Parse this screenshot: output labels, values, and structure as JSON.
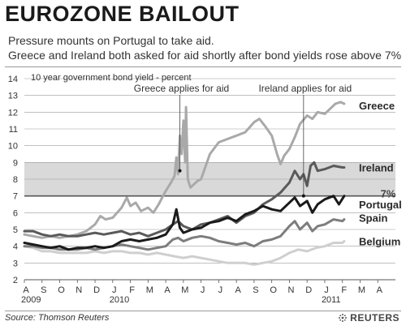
{
  "header": {
    "title": "EUROZONE BAILOUT",
    "subtitle_1": "Pressure mounts on Portugal to take aid.",
    "subtitle_2": "Greece and Ireland both asked for aid shortly after bond yields rose above 7%"
  },
  "footer": {
    "source": "Source: Thomson Reuters",
    "brand": "REUTERS"
  },
  "colors": {
    "highlight_band": "#d9d9d9",
    "threshold_line": "#555555",
    "greece": "#a9a9a9",
    "ireland": "#5a5a5a",
    "portugal": "#1a1a1a",
    "spain": "#7d7d7d",
    "belgium": "#cfcfcf"
  },
  "chart_data": {
    "type": "line",
    "ylabel": "10 year government bond yield - percent",
    "ylim": [
      2,
      14
    ],
    "yticks": [
      2,
      3,
      4,
      5,
      6,
      7,
      8,
      9,
      10,
      11,
      12,
      13,
      14
    ],
    "grid": true,
    "shaded_band": [
      7,
      9
    ],
    "threshold": {
      "value": 7,
      "label": "7%"
    },
    "x_month_labels": [
      "A",
      "S",
      "O",
      "N",
      "D",
      "J",
      "F",
      "M",
      "A",
      "M",
      "J",
      "J",
      "A",
      "S",
      "O",
      "N",
      "D",
      "J",
      "F",
      "M",
      "A"
    ],
    "x_year_labels": [
      {
        "label": "2009",
        "month_index": 0
      },
      {
        "label": "2010",
        "month_index": 5
      },
      {
        "label": "2011",
        "month_index": 17
      }
    ],
    "x_range_months": [
      0,
      21
    ],
    "annotations": [
      {
        "text": "Greece applies for aid",
        "x": 8.8,
        "y": 8.5
      },
      {
        "text": "Ireland applies for aid",
        "x": 15.8,
        "y": 7.0
      }
    ],
    "series": [
      {
        "name": "Greece",
        "label_y": 12.4,
        "points": [
          [
            0,
            4.7
          ],
          [
            0.5,
            4.6
          ],
          [
            1,
            4.5
          ],
          [
            1.5,
            4.6
          ],
          [
            2,
            4.5
          ],
          [
            2.5,
            4.6
          ],
          [
            3,
            4.7
          ],
          [
            3.5,
            4.9
          ],
          [
            4,
            5.3
          ],
          [
            4.3,
            5.8
          ],
          [
            4.6,
            5.6
          ],
          [
            5,
            5.7
          ],
          [
            5.5,
            6.3
          ],
          [
            5.8,
            6.9
          ],
          [
            6,
            6.4
          ],
          [
            6.3,
            6.6
          ],
          [
            6.6,
            6.1
          ],
          [
            7,
            6.3
          ],
          [
            7.3,
            6.0
          ],
          [
            7.6,
            6.5
          ],
          [
            8,
            7.3
          ],
          [
            8.3,
            7.8
          ],
          [
            8.5,
            8.2
          ],
          [
            8.6,
            9.3
          ],
          [
            8.7,
            8.3
          ],
          [
            8.8,
            10.6
          ],
          [
            8.9,
            9.5
          ],
          [
            9.0,
            11.5
          ],
          [
            9.1,
            9.0
          ],
          [
            9.15,
            12.3
          ],
          [
            9.25,
            8.0
          ],
          [
            9.4,
            7.5
          ],
          [
            9.6,
            7.7
          ],
          [
            9.8,
            7.9
          ],
          [
            10,
            8.0
          ],
          [
            10.5,
            9.5
          ],
          [
            11,
            10.2
          ],
          [
            11.5,
            10.4
          ],
          [
            12,
            10.6
          ],
          [
            12.5,
            10.8
          ],
          [
            13,
            11.4
          ],
          [
            13.3,
            11.6
          ],
          [
            13.6,
            11.2
          ],
          [
            14,
            10.6
          ],
          [
            14.3,
            9.5
          ],
          [
            14.5,
            8.9
          ],
          [
            14.7,
            9.4
          ],
          [
            15,
            9.8
          ],
          [
            15.3,
            10.5
          ],
          [
            15.6,
            11.3
          ],
          [
            16,
            11.8
          ],
          [
            16.3,
            11.6
          ],
          [
            16.6,
            12.0
          ],
          [
            17,
            11.9
          ],
          [
            17.3,
            12.2
          ],
          [
            17.6,
            12.5
          ],
          [
            17.9,
            12.6
          ],
          [
            18.1,
            12.5
          ]
        ]
      },
      {
        "name": "Ireland",
        "label_y": 8.7,
        "points": [
          [
            0,
            4.9
          ],
          [
            0.5,
            4.9
          ],
          [
            1,
            4.7
          ],
          [
            1.5,
            4.6
          ],
          [
            2,
            4.7
          ],
          [
            2.5,
            4.6
          ],
          [
            3,
            4.6
          ],
          [
            3.5,
            4.7
          ],
          [
            4,
            4.8
          ],
          [
            4.5,
            4.7
          ],
          [
            5,
            4.8
          ],
          [
            5.5,
            4.9
          ],
          [
            6,
            4.7
          ],
          [
            6.5,
            4.8
          ],
          [
            7,
            4.6
          ],
          [
            7.5,
            4.8
          ],
          [
            8,
            5.0
          ],
          [
            8.4,
            5.3
          ],
          [
            8.7,
            5.5
          ],
          [
            9,
            5.2
          ],
          [
            9.5,
            5.0
          ],
          [
            10,
            5.3
          ],
          [
            10.5,
            5.4
          ],
          [
            11,
            5.6
          ],
          [
            11.5,
            5.8
          ],
          [
            12,
            5.4
          ],
          [
            12.5,
            5.8
          ],
          [
            13,
            6.0
          ],
          [
            13.5,
            6.5
          ],
          [
            14,
            6.8
          ],
          [
            14.5,
            7.2
          ],
          [
            15,
            7.8
          ],
          [
            15.3,
            8.5
          ],
          [
            15.6,
            8.0
          ],
          [
            15.8,
            8.3
          ],
          [
            16,
            7.6
          ],
          [
            16.2,
            8.8
          ],
          [
            16.4,
            9.0
          ],
          [
            16.6,
            8.5
          ],
          [
            17,
            8.6
          ],
          [
            17.5,
            8.8
          ],
          [
            18,
            8.7
          ],
          [
            18.1,
            8.7
          ]
        ]
      },
      {
        "name": "Portugal",
        "label_y": 6.5,
        "points": [
          [
            0,
            4.2
          ],
          [
            0.5,
            4.1
          ],
          [
            1,
            4.0
          ],
          [
            1.5,
            3.9
          ],
          [
            2,
            4.0
          ],
          [
            2.5,
            3.8
          ],
          [
            3,
            3.9
          ],
          [
            3.5,
            3.9
          ],
          [
            4,
            4.0
          ],
          [
            4.5,
            3.9
          ],
          [
            5,
            4.0
          ],
          [
            5.5,
            4.3
          ],
          [
            6,
            4.4
          ],
          [
            6.5,
            4.3
          ],
          [
            7,
            4.4
          ],
          [
            7.5,
            4.5
          ],
          [
            8,
            4.7
          ],
          [
            8.4,
            5.3
          ],
          [
            8.6,
            6.2
          ],
          [
            8.8,
            5.1
          ],
          [
            9,
            4.8
          ],
          [
            9.5,
            5.0
          ],
          [
            10,
            5.1
          ],
          [
            10.5,
            5.4
          ],
          [
            11,
            5.5
          ],
          [
            11.5,
            5.7
          ],
          [
            12,
            5.5
          ],
          [
            12.5,
            5.9
          ],
          [
            13,
            6.1
          ],
          [
            13.5,
            6.4
          ],
          [
            14,
            6.2
          ],
          [
            14.5,
            6.1
          ],
          [
            15,
            6.6
          ],
          [
            15.3,
            6.9
          ],
          [
            15.6,
            6.4
          ],
          [
            16,
            6.7
          ],
          [
            16.3,
            6.0
          ],
          [
            16.6,
            6.5
          ],
          [
            17,
            6.8
          ],
          [
            17.5,
            7.0
          ],
          [
            17.8,
            6.5
          ],
          [
            18.1,
            7.0
          ]
        ]
      },
      {
        "name": "Spain",
        "label_y": 5.7,
        "points": [
          [
            0,
            4.0
          ],
          [
            0.5,
            4.0
          ],
          [
            1,
            3.9
          ],
          [
            1.5,
            3.9
          ],
          [
            2,
            3.8
          ],
          [
            2.5,
            3.8
          ],
          [
            3,
            3.8
          ],
          [
            3.5,
            3.9
          ],
          [
            4,
            3.8
          ],
          [
            4.5,
            3.9
          ],
          [
            5,
            4.0
          ],
          [
            5.5,
            4.1
          ],
          [
            6,
            4.0
          ],
          [
            6.5,
            3.9
          ],
          [
            7,
            3.8
          ],
          [
            7.5,
            3.9
          ],
          [
            8,
            4.0
          ],
          [
            8.4,
            4.4
          ],
          [
            8.7,
            4.5
          ],
          [
            9,
            4.3
          ],
          [
            9.5,
            4.5
          ],
          [
            10,
            4.6
          ],
          [
            10.5,
            4.5
          ],
          [
            11,
            4.3
          ],
          [
            11.5,
            4.2
          ],
          [
            12,
            4.1
          ],
          [
            12.5,
            4.2
          ],
          [
            13,
            4.0
          ],
          [
            13.5,
            4.3
          ],
          [
            14,
            4.4
          ],
          [
            14.5,
            4.6
          ],
          [
            15,
            5.2
          ],
          [
            15.3,
            5.5
          ],
          [
            15.6,
            5.0
          ],
          [
            16,
            5.4
          ],
          [
            16.3,
            4.9
          ],
          [
            16.6,
            5.2
          ],
          [
            17,
            5.3
          ],
          [
            17.5,
            5.6
          ],
          [
            18,
            5.5
          ],
          [
            18.1,
            5.6
          ]
        ]
      },
      {
        "name": "Belgium",
        "label_y": 4.3,
        "points": [
          [
            0,
            4.0
          ],
          [
            0.5,
            3.9
          ],
          [
            1,
            3.7
          ],
          [
            1.5,
            3.7
          ],
          [
            2,
            3.6
          ],
          [
            2.5,
            3.6
          ],
          [
            3,
            3.6
          ],
          [
            3.5,
            3.6
          ],
          [
            4,
            3.7
          ],
          [
            4.5,
            3.6
          ],
          [
            5,
            3.7
          ],
          [
            5.5,
            3.7
          ],
          [
            6,
            3.6
          ],
          [
            6.5,
            3.6
          ],
          [
            7,
            3.5
          ],
          [
            7.5,
            3.6
          ],
          [
            8,
            3.5
          ],
          [
            8.5,
            3.4
          ],
          [
            9,
            3.3
          ],
          [
            9.5,
            3.4
          ],
          [
            10,
            3.3
          ],
          [
            10.5,
            3.2
          ],
          [
            11,
            3.1
          ],
          [
            11.5,
            3.0
          ],
          [
            12,
            3.0
          ],
          [
            12.5,
            3.0
          ],
          [
            13,
            2.9
          ],
          [
            13.5,
            3.0
          ],
          [
            14,
            3.1
          ],
          [
            14.5,
            3.3
          ],
          [
            15,
            3.6
          ],
          [
            15.5,
            3.8
          ],
          [
            16,
            3.7
          ],
          [
            16.5,
            3.9
          ],
          [
            17,
            4.0
          ],
          [
            17.5,
            4.2
          ],
          [
            18,
            4.2
          ],
          [
            18.1,
            4.3
          ]
        ]
      }
    ]
  }
}
